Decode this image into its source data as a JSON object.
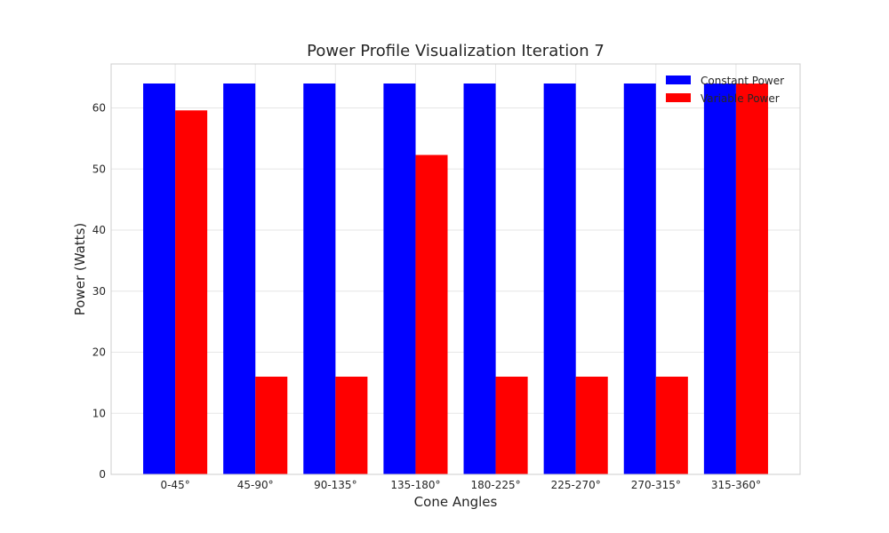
{
  "chart_data": {
    "type": "bar",
    "title": "Power Profile Visualization Iteration 7",
    "xlabel": "Cone Angles",
    "ylabel": "Power (Watts)",
    "categories": [
      "0-45°",
      "45-90°",
      "90-135°",
      "135-180°",
      "180-225°",
      "225-270°",
      "270-315°",
      "315-360°"
    ],
    "series": [
      {
        "name": "Constant Power",
        "color": "#0000ff",
        "values": [
          64,
          64,
          64,
          64,
          64,
          64,
          64,
          64
        ]
      },
      {
        "name": "Variable Power",
        "color": "#ff0000",
        "values": [
          59.6,
          16,
          16,
          52.3,
          16,
          16,
          16,
          64
        ]
      }
    ],
    "ylim": [
      0,
      67.2
    ],
    "yticks": [
      0,
      10,
      20,
      30,
      40,
      50,
      60
    ],
    "grid": true,
    "legend_position": "top-right"
  }
}
